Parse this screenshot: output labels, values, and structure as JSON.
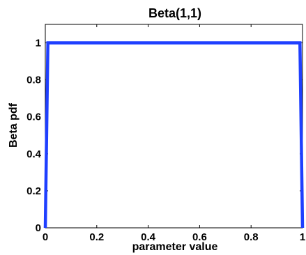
{
  "chart_data": {
    "type": "line",
    "title": "Beta(1,1)",
    "xlabel": "parameter value",
    "ylabel": "Beta pdf",
    "xlim": [
      0,
      1
    ],
    "ylim": [
      0,
      1.1
    ],
    "xticks": [
      0,
      0.2,
      0.4,
      0.6,
      0.8,
      1
    ],
    "xtick_labels": [
      "0",
      "0.2",
      "0.4",
      "0.6",
      "0.8",
      "1"
    ],
    "yticks": [
      0,
      0.2,
      0.4,
      0.6,
      0.8,
      1
    ],
    "ytick_labels": [
      "0",
      "0.2",
      "0.4",
      "0.6",
      "0.8",
      "1"
    ],
    "grid": false,
    "series": [
      {
        "color": "#1f3fff",
        "x": [
          0,
          0.01,
          0.99,
          1
        ],
        "y": [
          0,
          1,
          1,
          0
        ]
      }
    ]
  }
}
